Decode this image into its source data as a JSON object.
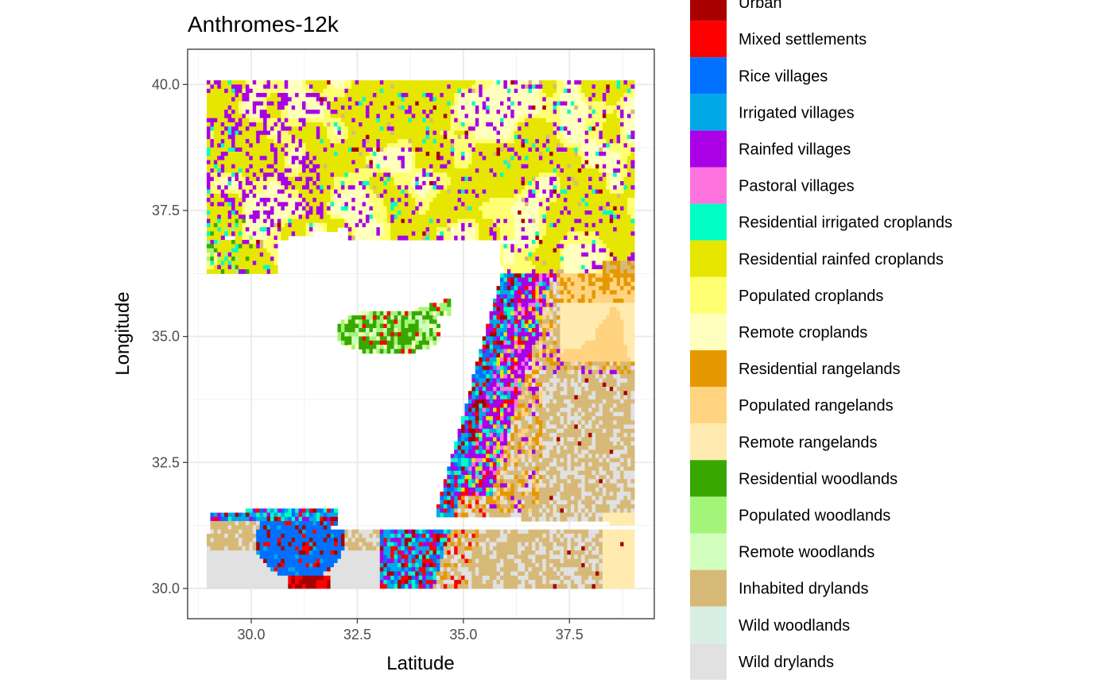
{
  "chart_data": {
    "type": "heatmap",
    "title": "Anthromes-12k",
    "xlabel": "Latitude",
    "ylabel": "Longitude",
    "xlim": [
      28.5,
      39.5
    ],
    "ylim": [
      29.4,
      40.7
    ],
    "xticks": [
      {
        "value": 30.0,
        "label": "30.0"
      },
      {
        "value": 32.5,
        "label": "32.5"
      },
      {
        "value": 35.0,
        "label": "35.0"
      },
      {
        "value": 37.5,
        "label": "37.5"
      }
    ],
    "yticks": [
      {
        "value": 30.0,
        "label": "30.0"
      },
      {
        "value": 32.5,
        "label": "32.5"
      },
      {
        "value": 35.0,
        "label": "35.0"
      },
      {
        "value": 37.5,
        "label": "37.5"
      },
      {
        "value": 40.0,
        "label": "40.0"
      }
    ],
    "grid": true,
    "legend_position": "right",
    "legend": [
      {
        "label": "Urban",
        "color": "#A80000"
      },
      {
        "label": "Mixed settlements",
        "color": "#FF0000"
      },
      {
        "label": "Rice villages",
        "color": "#0070FF"
      },
      {
        "label": "Irrigated villages",
        "color": "#00A9E6"
      },
      {
        "label": "Rainfed villages",
        "color": "#A900E6"
      },
      {
        "label": "Pastoral villages",
        "color": "#FF73DF"
      },
      {
        "label": "Residential irrigated croplands",
        "color": "#00FFC5"
      },
      {
        "label": "Residential rainfed croplands",
        "color": "#E6E600"
      },
      {
        "label": "Populated croplands",
        "color": "#FFFF73"
      },
      {
        "label": "Remote croplands",
        "color": "#FFFFBE"
      },
      {
        "label": "Residential rangelands",
        "color": "#E69800"
      },
      {
        "label": "Populated rangelands",
        "color": "#FFD37F"
      },
      {
        "label": "Remote rangelands",
        "color": "#FFEBAF"
      },
      {
        "label": "Residential woodlands",
        "color": "#38A800"
      },
      {
        "label": "Populated woodlands",
        "color": "#A3F57A"
      },
      {
        "label": "Remote woodlands",
        "color": "#D3FFBE"
      },
      {
        "label": "Inhabited drylands",
        "color": "#D7B977"
      },
      {
        "label": "Wild woodlands",
        "color": "#D7EFE5"
      },
      {
        "label": "Wild drylands",
        "color": "#E1E1E1"
      }
    ]
  }
}
